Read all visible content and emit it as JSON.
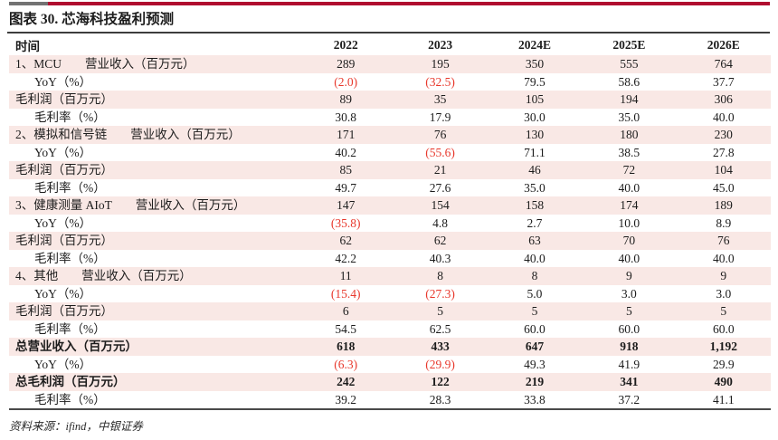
{
  "title": "图表 30. 芯海科技盈利预测",
  "footer": "资料来源：ifind，中银证券",
  "colors": {
    "bar_gray": "#737373",
    "bar_red": "#b00c2f",
    "row_pink": "#f9e8e5",
    "negative_red": "#e8382c"
  },
  "table": {
    "time_header": "时间",
    "year_headers": [
      "2022",
      "2023",
      "2024E",
      "2025E",
      "2026E"
    ],
    "rows": [
      {
        "style": "section",
        "prefix": "1、MCU",
        "metric": "营业收入（百万元）",
        "values": [
          "289",
          "195",
          "350",
          "555",
          "764"
        ]
      },
      {
        "style": "sub",
        "label": "YoY（%）",
        "values": [
          "(2.0)",
          "(32.5)",
          "79.5",
          "58.6",
          "37.7"
        ]
      },
      {
        "style": "plain",
        "label": "毛利润（百万元）",
        "values": [
          "89",
          "35",
          "105",
          "194",
          "306"
        ]
      },
      {
        "style": "sub",
        "label": "毛利率（%）",
        "values": [
          "30.8",
          "17.9",
          "30.0",
          "35.0",
          "40.0"
        ]
      },
      {
        "style": "section",
        "prefix": "2、模拟和信号链",
        "metric": "营业收入（百万元）",
        "values": [
          "171",
          "76",
          "130",
          "180",
          "230"
        ]
      },
      {
        "style": "sub",
        "label": "YoY（%）",
        "values": [
          "40.2",
          "(55.6)",
          "71.1",
          "38.5",
          "27.8"
        ]
      },
      {
        "style": "plain",
        "label": "毛利润（百万元）",
        "values": [
          "85",
          "21",
          "46",
          "72",
          "104"
        ]
      },
      {
        "style": "sub",
        "label": "毛利率（%）",
        "values": [
          "49.7",
          "27.6",
          "35.0",
          "40.0",
          "45.0"
        ]
      },
      {
        "style": "section",
        "prefix": "3、健康测量 AIoT",
        "metric": "营业收入（百万元）",
        "values": [
          "147",
          "154",
          "158",
          "174",
          "189"
        ]
      },
      {
        "style": "sub",
        "label": "YoY（%）",
        "values": [
          "(35.8)",
          "4.8",
          "2.7",
          "10.0",
          "8.9"
        ]
      },
      {
        "style": "plain",
        "label": "毛利润（百万元）",
        "values": [
          "62",
          "62",
          "63",
          "70",
          "76"
        ]
      },
      {
        "style": "sub",
        "label": "毛利率（%）",
        "values": [
          "42.2",
          "40.3",
          "40.0",
          "40.0",
          "40.0"
        ]
      },
      {
        "style": "section",
        "prefix": "4、其他",
        "metric": "营业收入（百万元）",
        "values": [
          "11",
          "8",
          "8",
          "9",
          "9"
        ]
      },
      {
        "style": "sub",
        "label": "YoY（%）",
        "values": [
          "(15.4)",
          "(27.3)",
          "5.0",
          "3.0",
          "3.0"
        ]
      },
      {
        "style": "plain",
        "label": "毛利润（百万元）",
        "values": [
          "6",
          "5",
          "5",
          "5",
          "5"
        ]
      },
      {
        "style": "sub",
        "label": "毛利率（%）",
        "values": [
          "54.5",
          "62.5",
          "60.0",
          "60.0",
          "60.0"
        ]
      },
      {
        "style": "total",
        "label": "总营业收入（百万元）",
        "values": [
          "618",
          "433",
          "647",
          "918",
          "1,192"
        ]
      },
      {
        "style": "sub",
        "label": "YoY（%）",
        "values": [
          "(6.3)",
          "(29.9)",
          "49.3",
          "41.9",
          "29.9"
        ]
      },
      {
        "style": "total",
        "label": "总毛利润（百万元）",
        "values": [
          "242",
          "122",
          "219",
          "341",
          "490"
        ]
      },
      {
        "style": "sub",
        "label": "毛利率（%）",
        "values": [
          "39.2",
          "28.3",
          "33.8",
          "37.2",
          "41.1"
        ]
      }
    ]
  }
}
